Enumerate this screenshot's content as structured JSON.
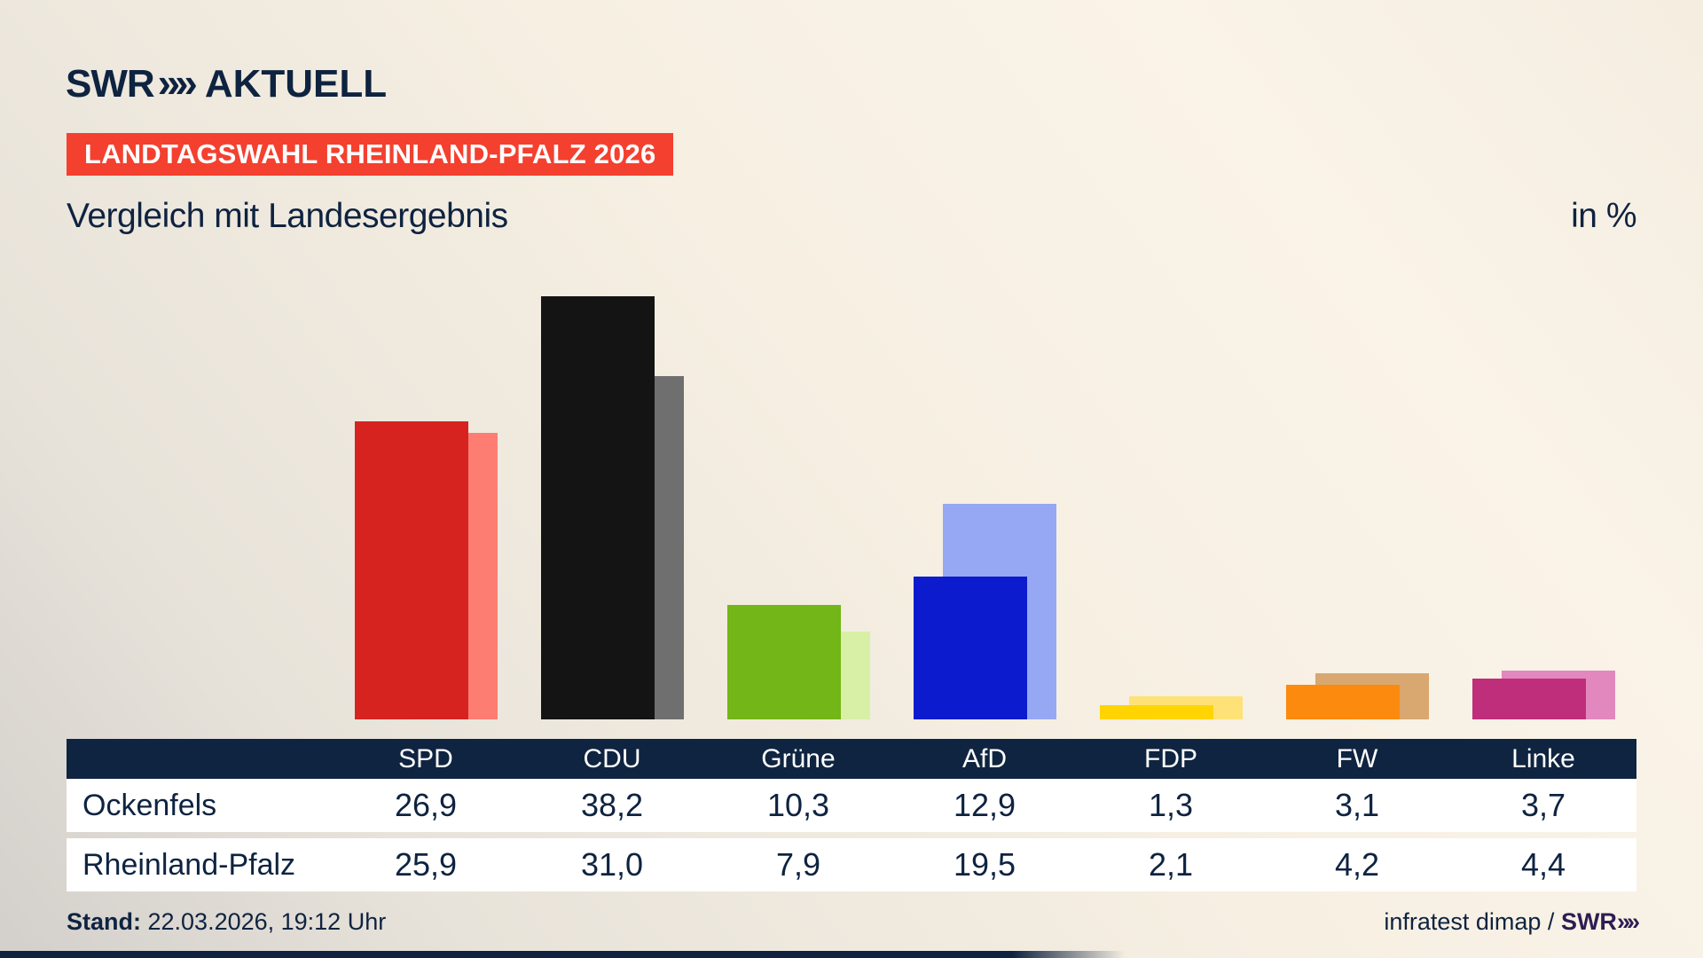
{
  "brand": {
    "logo_text": "SWR",
    "logo_chevron": "»",
    "logo_suffix": "AKTUELL"
  },
  "badge": {
    "label": "LANDTAGSWAHL RHEINLAND-PFALZ 2026",
    "bg_color": "#f4402f"
  },
  "title": "Vergleich mit Landesergebnis",
  "unit_label": "in %",
  "chart_data": {
    "type": "bar",
    "title": "Vergleich mit Landesergebnis",
    "ylabel": "in %",
    "categories": [
      "SPD",
      "CDU",
      "Grüne",
      "AfD",
      "FDP",
      "FW",
      "Linke"
    ],
    "series": [
      {
        "name": "Ockenfels",
        "values": [
          26.9,
          38.2,
          10.3,
          12.9,
          1.3,
          3.1,
          3.7
        ]
      },
      {
        "name": "Rheinland-Pfalz",
        "values": [
          25.9,
          31.0,
          7.9,
          19.5,
          2.1,
          4.2,
          4.4
        ]
      }
    ],
    "colors_main": [
      "#d7231f",
      "#141414",
      "#72b617",
      "#0b1bcd",
      "#ffd400",
      "#fb8a0e",
      "#bf2e7a"
    ],
    "colors_state": [
      "#fd7d72",
      "#6f6f6f",
      "#d7f0a6",
      "#96a8f3",
      "#ffe277",
      "#d8a870",
      "#e288be"
    ],
    "ylim": [
      0,
      40
    ],
    "grid": false,
    "legend_position": "table-below"
  },
  "table": {
    "header_bg": "#0f2440",
    "columns": [
      "SPD",
      "CDU",
      "Grüne",
      "AfD",
      "FDP",
      "FW",
      "Linke"
    ],
    "rows": [
      {
        "label": "Ockenfels",
        "values": [
          "26,9",
          "38,2",
          "10,3",
          "12,9",
          "1,3",
          "3,1",
          "3,7"
        ]
      },
      {
        "label": "Rheinland-Pfalz",
        "values": [
          "25,9",
          "31,0",
          "7,9",
          "19,5",
          "2,1",
          "4,2",
          "4,4"
        ]
      }
    ]
  },
  "footer": {
    "stand_label": "Stand:",
    "stand_value": " 22.03.2026, 19:12 Uhr",
    "source_prefix": "infratest dimap / ",
    "source_brand": "SWR",
    "source_chevron": "»"
  }
}
